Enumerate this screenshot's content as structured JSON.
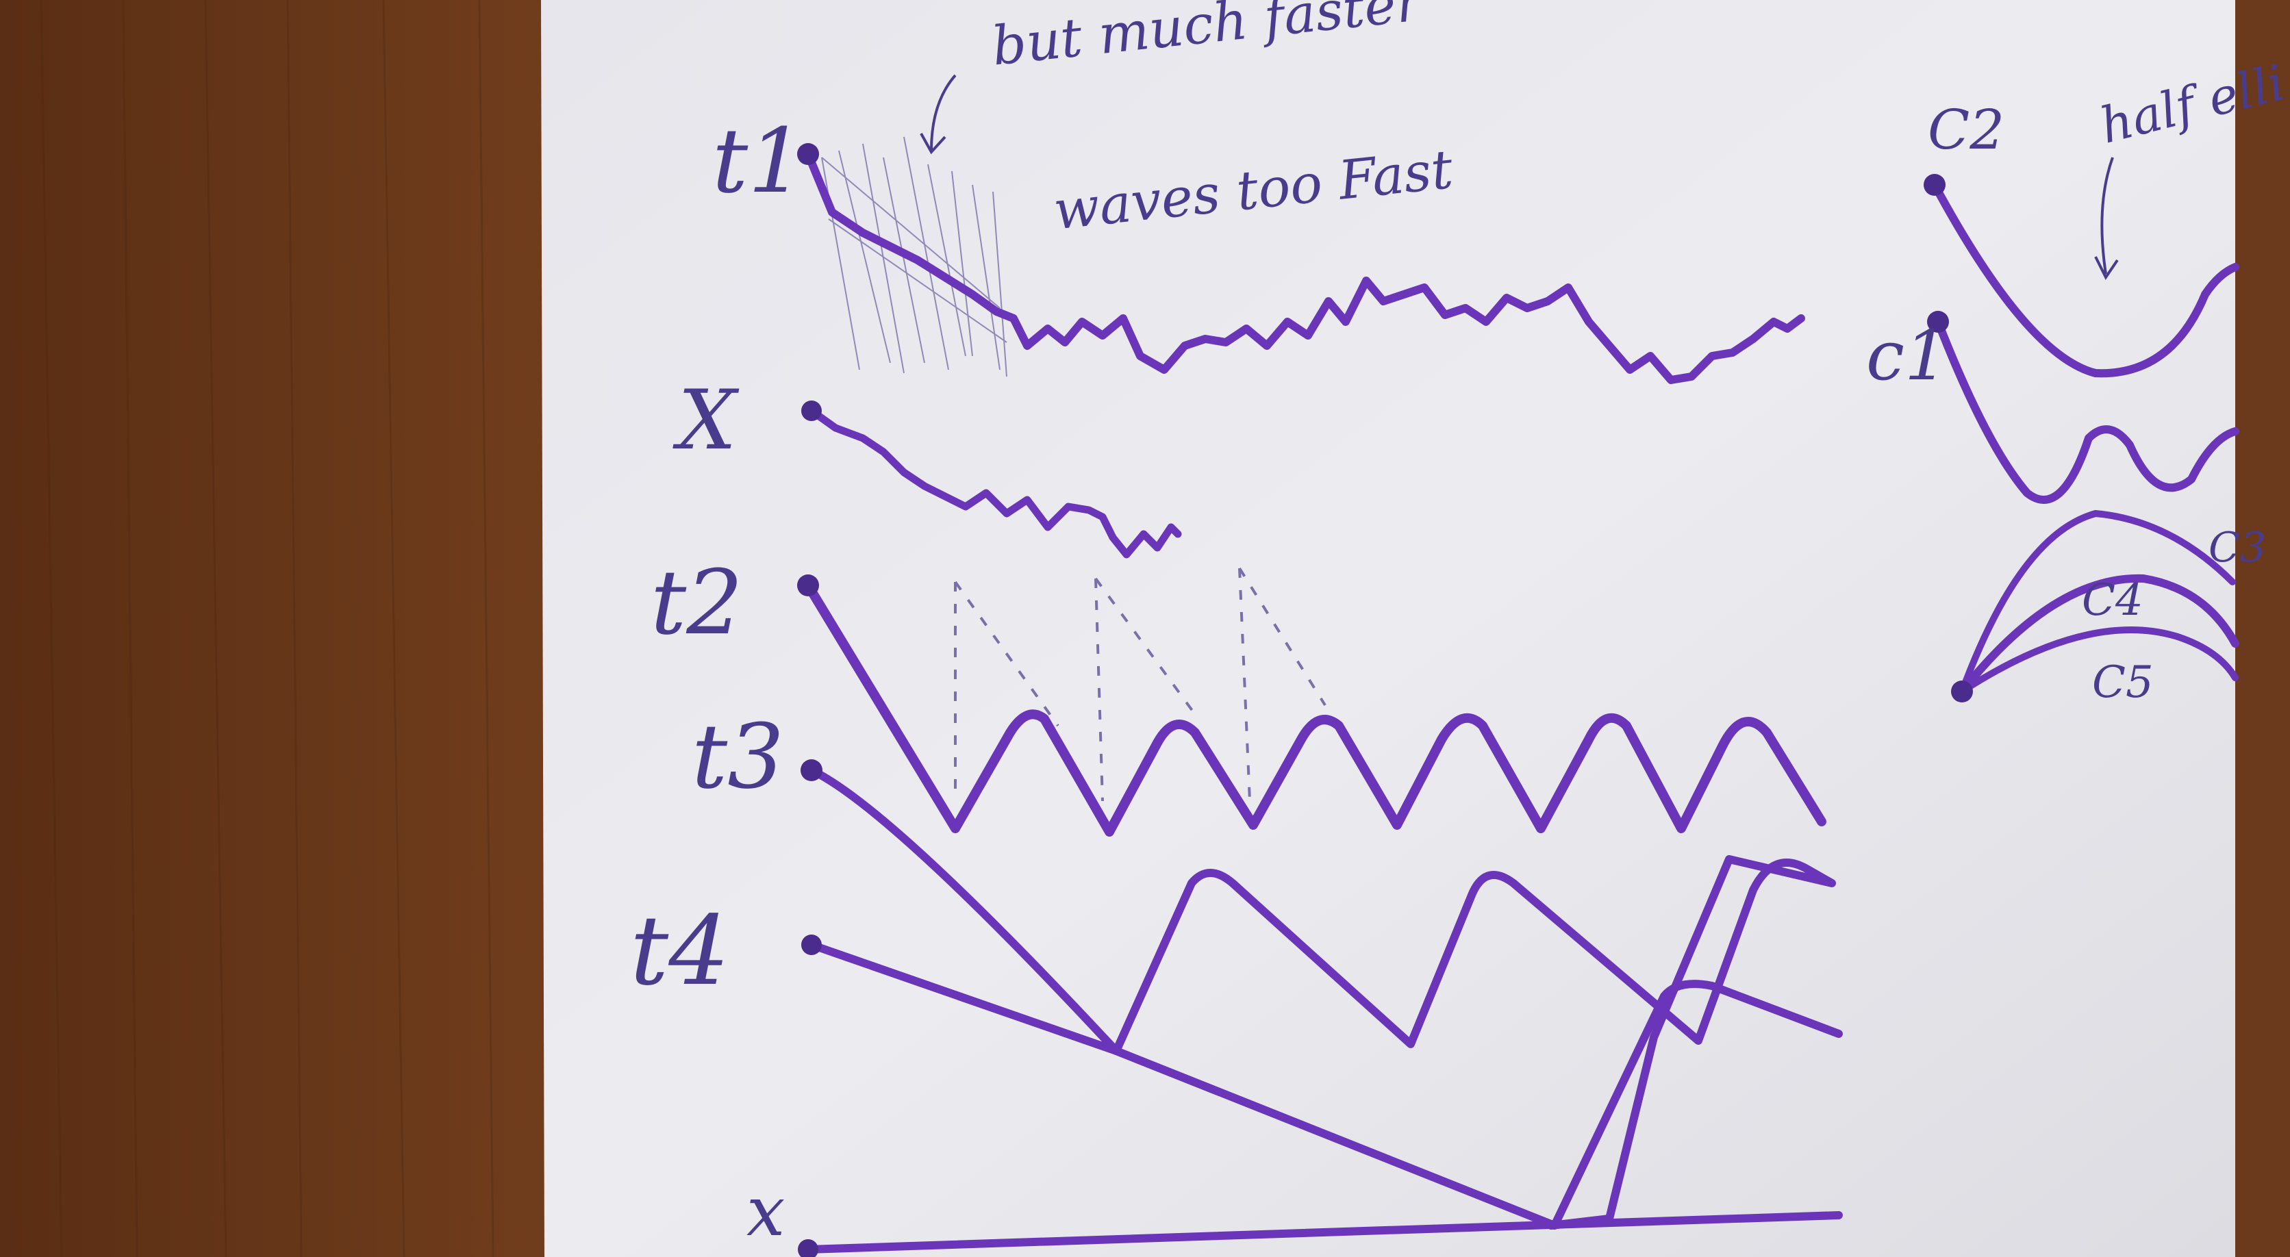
{
  "colors": {
    "ink": "#6a35b8",
    "pencil": "#4a3c8c",
    "paper": "#e9e9ee",
    "wood": "#6b3a1c"
  },
  "labels": {
    "t1": "t1",
    "x_upper": "X",
    "t2": "t2",
    "t3": "t3",
    "t4": "t4",
    "x_lower": "x",
    "c2": "C2",
    "c1": "c1",
    "c4": "C4",
    "c5": "C5",
    "c3_partial": "C3"
  },
  "notes": {
    "but_faster": "but much faster",
    "waves_fast": "waves too Fast",
    "half_ellipse": "half elli"
  }
}
